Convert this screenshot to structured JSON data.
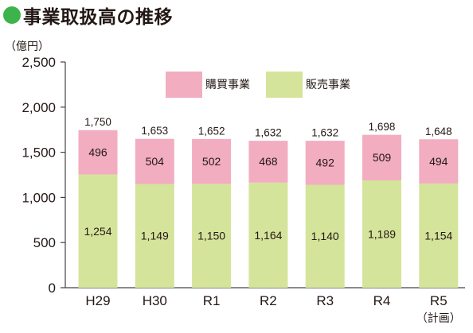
{
  "title": "事業取扱高の推移",
  "colors": {
    "accent": "#3cb44b",
    "purchase": "#f2adc0",
    "sales": "#d5e49b",
    "axis": "#444444"
  },
  "chart_data": {
    "type": "bar",
    "stacked": true,
    "unit_label": "（億円）",
    "ylim": [
      0,
      2500
    ],
    "yticks": [
      "0",
      "500",
      "1,000",
      "1,500",
      "2,000",
      "2,500"
    ],
    "ytick_values": [
      0,
      500,
      1000,
      1500,
      2000,
      2500
    ],
    "categories": [
      "H29",
      "H30",
      "R1",
      "R2",
      "R3",
      "R4",
      "R5"
    ],
    "category_sublabels": [
      "",
      "",
      "",
      "",
      "",
      "",
      "（計画）"
    ],
    "series": [
      {
        "name": "販売事業",
        "values": [
          1254,
          1149,
          1150,
          1164,
          1140,
          1189,
          1154
        ],
        "labels": [
          "1,254",
          "1,149",
          "1,150",
          "1,164",
          "1,140",
          "1,189",
          "1,154"
        ],
        "color": "#d5e49b"
      },
      {
        "name": "購買事業",
        "values": [
          496,
          504,
          502,
          468,
          492,
          509,
          494
        ],
        "labels": [
          "496",
          "504",
          "502",
          "468",
          "492",
          "509",
          "494"
        ],
        "color": "#f2adc0"
      }
    ],
    "totals": [
      1750,
      1653,
      1652,
      1632,
      1632,
      1698,
      1648
    ],
    "total_labels": [
      "1,750",
      "1,653",
      "1,652",
      "1,632",
      "1,632",
      "1,698",
      "1,648"
    ],
    "legend": [
      "購買事業",
      "販売事業"
    ],
    "legend_position": "top-center",
    "grid": false
  }
}
